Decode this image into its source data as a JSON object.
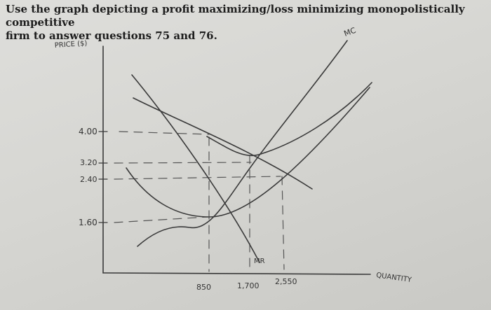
{
  "question": {
    "line1": "Use the graph depicting a profit maximizing/loss minimizing monopolistically competitive",
    "line2": "firm to answer questions 75 and 76."
  },
  "graph": {
    "y_axis_label": "PRICE ($)",
    "x_axis_label": "QUANTITY",
    "price_ticks": [
      "4.00",
      "3.20",
      "2.40",
      "1.60"
    ],
    "quantity_ticks": [
      "850",
      "1,700",
      "2,550"
    ],
    "curve_labels": {
      "mc": "MC",
      "mr": "MR"
    },
    "ink_color": "#3a3a3a"
  }
}
